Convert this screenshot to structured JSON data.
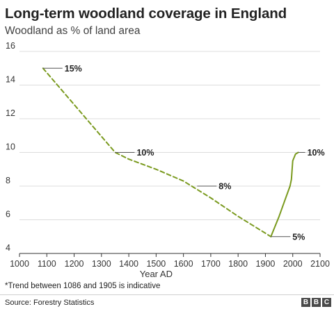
{
  "header": {
    "title": "Long-term woodland coverage in England",
    "subtitle": "Woodland as % of land area"
  },
  "footer": {
    "note": "*Trend between 1086 and 1905 is indicative",
    "source": "Source: Forestry Statistics",
    "logo_letters": [
      "B",
      "B",
      "C"
    ]
  },
  "chart_data": {
    "type": "line",
    "title": "Long-term woodland coverage in England",
    "subtitle": "Woodland as % of land area",
    "xlabel": "Year AD",
    "ylabel": "",
    "xlim": [
      1000,
      2100
    ],
    "ylim": [
      4,
      16
    ],
    "xticks": [
      1000,
      1100,
      1200,
      1300,
      1400,
      1500,
      1600,
      1700,
      1800,
      1900,
      2000,
      2100
    ],
    "yticks": [
      4,
      6,
      8,
      10,
      12,
      14,
      16
    ],
    "grid": true,
    "line_color": "#7a9a1e",
    "series": [
      {
        "style": "dashed",
        "x": [
          1086,
          1350,
          1400,
          1500,
          1600,
          1700,
          1800,
          1900,
          1920
        ],
        "y": [
          15,
          10,
          9.6,
          9.0,
          8.3,
          7.3,
          6.2,
          5.2,
          5
        ]
      },
      {
        "style": "solid",
        "x": [
          1920,
          1930,
          1950,
          1970,
          1990,
          1995,
          2000,
          2010,
          2020
        ],
        "y": [
          5,
          5.4,
          6.2,
          7.1,
          8.0,
          8.4,
          9.5,
          9.9,
          10
        ]
      }
    ],
    "annotations": [
      {
        "text": "15%",
        "x": 1086,
        "y": 15
      },
      {
        "text": "10%",
        "x": 1350,
        "y": 10
      },
      {
        "text": "8%",
        "x": 1650,
        "y": 8
      },
      {
        "text": "5%",
        "x": 1920,
        "y": 5
      },
      {
        "text": "10%",
        "x": 2020,
        "y": 10
      }
    ]
  }
}
